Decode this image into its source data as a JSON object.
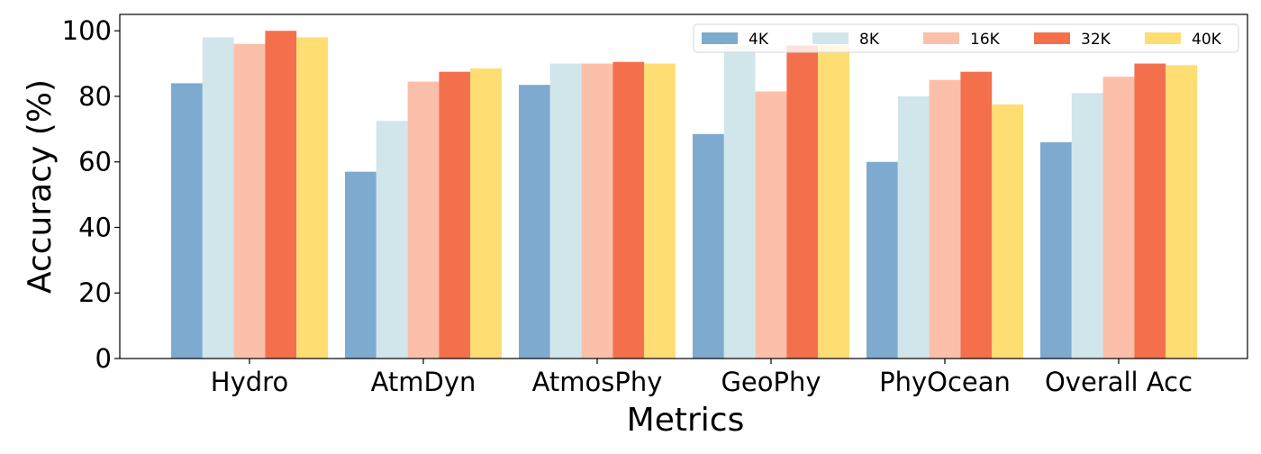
{
  "chart_data": {
    "type": "bar",
    "title": "",
    "xlabel": "Metrics",
    "ylabel": "Accuracy (%)",
    "ylim": [
      0,
      105
    ],
    "yticks": [
      0,
      20,
      40,
      60,
      80,
      100
    ],
    "grid": false,
    "legend_position": "top-right",
    "categories": [
      "Hydro",
      "AtmDyn",
      "AtmosPhy",
      "GeoPhy",
      "PhyOcean",
      "Overall Acc"
    ],
    "series": [
      {
        "name": "4K",
        "color": "#7faacf",
        "values": [
          84,
          57,
          83.5,
          68.5,
          60,
          66
        ]
      },
      {
        "name": "8K",
        "color": "#d0e6eb",
        "values": [
          98,
          72.5,
          90,
          95.5,
          80,
          81
        ]
      },
      {
        "name": "16K",
        "color": "#fbbfaa",
        "values": [
          96,
          84.5,
          90,
          81.5,
          85,
          86
        ]
      },
      {
        "name": "32K",
        "color": "#f4704d",
        "values": [
          100,
          87.5,
          90.5,
          95.5,
          87.5,
          90
        ]
      },
      {
        "name": "40K",
        "color": "#fedd73",
        "values": [
          98,
          88.5,
          90,
          95.5,
          77.5,
          89.5
        ]
      }
    ]
  }
}
